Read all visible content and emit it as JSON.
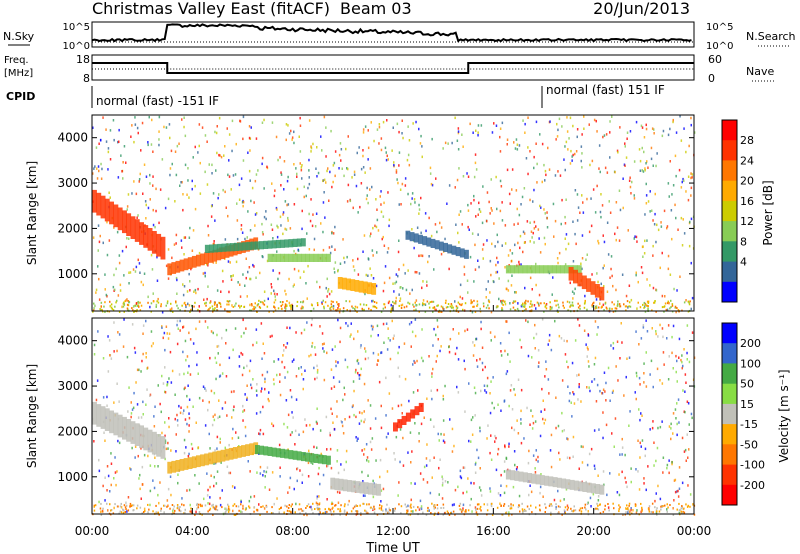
{
  "header": {
    "title": "Christmas Valley East (fitACF)",
    "beam": "Beam 03",
    "date": "20/Jun/2013"
  },
  "top_panels": {
    "nsky_label": "N.Sky",
    "nsky_ticks": [
      "10^5",
      "10^0"
    ],
    "nsearch_label": "N.Search",
    "nsearch_ticks": [
      "10^5",
      "10^0"
    ],
    "freq_label": "Freq.",
    "freq_unit": "[MHz]",
    "freq_ticks": [
      "18",
      "8"
    ],
    "nave_label": "Nave",
    "nave_ticks": [
      "60",
      "0"
    ],
    "cpid_label": "CPID",
    "cpid_modes": [
      "normal (fast) -151 IF",
      "normal (fast) 151 IF"
    ]
  },
  "chart_data": [
    {
      "type": "heatmap",
      "panel": "power",
      "ylabel": "Slant Range [km]",
      "yticks": [
        "1000",
        "2000",
        "3000",
        "4000"
      ],
      "ylim": [
        180,
        4500
      ],
      "colorbar": {
        "label": "Power [dB]",
        "ticks": [
          "28",
          "24",
          "20",
          "16",
          "12",
          "8",
          "4"
        ],
        "colors": [
          "#ff0000",
          "#ff3300",
          "#ff7700",
          "#ffaa00",
          "#cccc00",
          "#88cc55",
          "#339966",
          "#336699",
          "#0000ff"
        ]
      },
      "bands": [
        {
          "t0": 0.0,
          "t1": 2.9,
          "r0": 2600,
          "r1": 1500,
          "w": 500,
          "c": "#ff3300"
        },
        {
          "t0": 3.0,
          "t1": 6.6,
          "r0": 1100,
          "r1": 1700,
          "w": 260,
          "c": "#ff5500"
        },
        {
          "t0": 4.5,
          "t1": 8.5,
          "r0": 1550,
          "r1": 1700,
          "w": 180,
          "c": "#339966"
        },
        {
          "t0": 7.0,
          "t1": 9.5,
          "r0": 1350,
          "r1": 1350,
          "w": 180,
          "c": "#88cc55"
        },
        {
          "t0": 9.8,
          "t1": 11.3,
          "r0": 800,
          "r1": 650,
          "w": 260,
          "c": "#ffaa00"
        },
        {
          "t0": 12.5,
          "t1": 15.0,
          "r0": 1850,
          "r1": 1400,
          "w": 200,
          "c": "#336699"
        },
        {
          "t0": 16.5,
          "t1": 19.5,
          "r0": 1100,
          "r1": 1100,
          "w": 180,
          "c": "#88cc55"
        },
        {
          "t0": 19.0,
          "t1": 20.4,
          "r0": 1000,
          "r1": 500,
          "w": 300,
          "c": "#ff4400"
        }
      ]
    },
    {
      "type": "heatmap",
      "panel": "velocity",
      "xlabel": "Time UT",
      "xticks": [
        "00:00",
        "04:00",
        "08:00",
        "12:00",
        "16:00",
        "20:00",
        "00:00"
      ],
      "ylabel": "Slant Range [km]",
      "yticks": [
        "1000",
        "2000",
        "3000",
        "4000"
      ],
      "ylim": [
        180,
        4500
      ],
      "colorbar": {
        "label": "Velocity [m s⁻¹]",
        "ticks": [
          "200",
          "100",
          "50",
          "15",
          "-15",
          "-50",
          "-100",
          "-200"
        ],
        "colors": [
          "#0000ff",
          "#3366cc",
          "#44aa44",
          "#88dd44",
          "#c0c0b8",
          "#ffaa00",
          "#ff7700",
          "#ff3300",
          "#ff0000"
        ]
      },
      "bands": [
        {
          "t0": 0.0,
          "t1": 2.9,
          "r0": 2400,
          "r1": 1600,
          "w": 500,
          "c": "#c0c0b8"
        },
        {
          "t0": 3.0,
          "t1": 6.6,
          "r0": 1200,
          "r1": 1650,
          "w": 260,
          "c": "#f0b020"
        },
        {
          "t0": 6.5,
          "t1": 9.5,
          "r0": 1600,
          "r1": 1350,
          "w": 200,
          "c": "#44aa44"
        },
        {
          "t0": 9.5,
          "t1": 11.5,
          "r0": 850,
          "r1": 700,
          "w": 260,
          "c": "#c0c0b8"
        },
        {
          "t0": 12.0,
          "t1": 13.2,
          "r0": 2100,
          "r1": 2600,
          "w": 200,
          "c": "#ff2200"
        },
        {
          "t0": 16.5,
          "t1": 20.4,
          "r0": 1050,
          "r1": 700,
          "w": 220,
          "c": "#c0c0b8"
        }
      ]
    }
  ]
}
